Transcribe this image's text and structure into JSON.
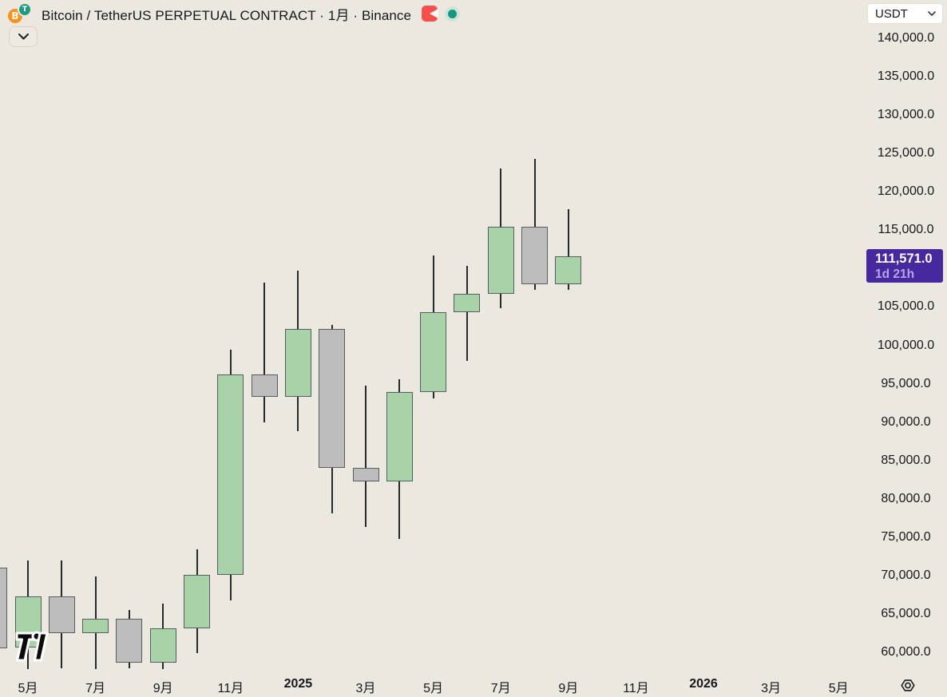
{
  "header": {
    "symbol_title": "Bitcoin / TetherUS PERPETUAL CONTRACT · 1月 · Binance",
    "base_coin": "B",
    "quote_coin": "T",
    "market_status": "open",
    "colors": {
      "bitcoin": "#f7931a",
      "tether": "#1f9a81",
      "flag": "#f5504b",
      "status_halo": "#cde5d8",
      "status_core": "#16967e"
    }
  },
  "currency_selector": {
    "value": "USDT"
  },
  "price_scale": {
    "labels": [
      {
        "text": "140,000.0",
        "value": 140000
      },
      {
        "text": "135,000.0",
        "value": 135000
      },
      {
        "text": "130,000.0",
        "value": 130000
      },
      {
        "text": "125,000.0",
        "value": 125000
      },
      {
        "text": "120,000.0",
        "value": 120000
      },
      {
        "text": "115,000.0",
        "value": 115000
      },
      {
        "text": "105,000.0",
        "value": 105000
      },
      {
        "text": "100,000.0",
        "value": 100000
      },
      {
        "text": "95,000.0",
        "value": 95000
      },
      {
        "text": "90,000.0",
        "value": 90000
      },
      {
        "text": "85,000.0",
        "value": 85000
      },
      {
        "text": "80,000.0",
        "value": 80000
      },
      {
        "text": "75,000.0",
        "value": 75000
      },
      {
        "text": "70,000.0",
        "value": 70000
      },
      {
        "text": "65,000.0",
        "value": 65000
      },
      {
        "text": "60,000.0",
        "value": 60000
      }
    ],
    "last_price_badge": {
      "price": "111,571.0",
      "countdown": "1d 21h",
      "value": 111571,
      "bg": "#47289e"
    }
  },
  "time_scale": {
    "labels": [
      {
        "text": "5月"
      },
      {
        "text": "7月"
      },
      {
        "text": "9月"
      },
      {
        "text": "11月"
      },
      {
        "text": "2025",
        "bold": true
      },
      {
        "text": "3月"
      },
      {
        "text": "5月"
      },
      {
        "text": "7月"
      },
      {
        "text": "9月"
      },
      {
        "text": "11月"
      },
      {
        "text": "2026",
        "bold": true
      },
      {
        "text": "3月"
      },
      {
        "text": "5月"
      }
    ]
  },
  "chart_data": {
    "type": "candlestick",
    "title": "Bitcoin / TetherUS PERPETUAL CONTRACT",
    "exchange": "Binance",
    "interval": "1月",
    "quote": "USDT",
    "legend_position": "none",
    "grid": false,
    "y_axis": {
      "top_price": 140000,
      "bottom_price": 60000,
      "tick_step": 5000,
      "visible_range": [
        57000,
        143000
      ]
    },
    "colors": {
      "up_fill": "#a8d3a8",
      "down_fill": "#bdbdbd",
      "border": "#595b5e",
      "wick": "#26282c",
      "background": "#ebe9df"
    },
    "last_price": 111571,
    "candles": [
      {
        "month": "2024-04",
        "xi": -1,
        "open": 71000,
        "high": 71000,
        "low": 60550,
        "close": 60550,
        "partial": true
      },
      {
        "month": "2024-05",
        "xi": 0,
        "open": 60600,
        "high": 71950,
        "low": 57800,
        "close": 67300
      },
      {
        "month": "2024-06",
        "xi": 1,
        "open": 67300,
        "high": 72000,
        "low": 57900,
        "close": 62500
      },
      {
        "month": "2024-07",
        "xi": 2,
        "open": 62500,
        "high": 69900,
        "low": 57800,
        "close": 64400
      },
      {
        "month": "2024-08",
        "xi": 3,
        "open": 64400,
        "high": 65500,
        "low": 57900,
        "close": 58650
      },
      {
        "month": "2024-09",
        "xi": 4,
        "open": 58650,
        "high": 66350,
        "low": 57800,
        "close": 63100
      },
      {
        "month": "2024-10",
        "xi": 5,
        "open": 63100,
        "high": 73400,
        "low": 59900,
        "close": 70100
      },
      {
        "month": "2024-11",
        "xi": 6,
        "open": 70100,
        "high": 99400,
        "low": 66750,
        "close": 96200
      },
      {
        "month": "2024-12",
        "xi": 7,
        "open": 96200,
        "high": 108200,
        "low": 90000,
        "close": 93300
      },
      {
        "month": "2025-01",
        "xi": 8,
        "open": 93300,
        "high": 109700,
        "low": 88800,
        "close": 102100
      },
      {
        "month": "2025-02",
        "xi": 9,
        "open": 102100,
        "high": 102650,
        "low": 78100,
        "close": 84000
      },
      {
        "month": "2025-03",
        "xi": 10,
        "open": 84000,
        "high": 94750,
        "low": 76300,
        "close": 82250
      },
      {
        "month": "2025-04",
        "xi": 11,
        "open": 82250,
        "high": 95600,
        "low": 74800,
        "close": 93900
      },
      {
        "month": "2025-05",
        "xi": 12,
        "open": 93900,
        "high": 111700,
        "low": 93100,
        "close": 104300
      },
      {
        "month": "2025-06",
        "xi": 13,
        "open": 104300,
        "high": 110350,
        "low": 98000,
        "close": 106700
      },
      {
        "month": "2025-07",
        "xi": 14,
        "open": 106700,
        "high": 123000,
        "low": 104800,
        "close": 115450
      },
      {
        "month": "2025-08",
        "xi": 15,
        "open": 115450,
        "high": 124300,
        "low": 107200,
        "close": 108000
      },
      {
        "month": "2025-09",
        "xi": 16,
        "open": 108000,
        "high": 117700,
        "low": 107200,
        "close": 111571
      }
    ]
  }
}
